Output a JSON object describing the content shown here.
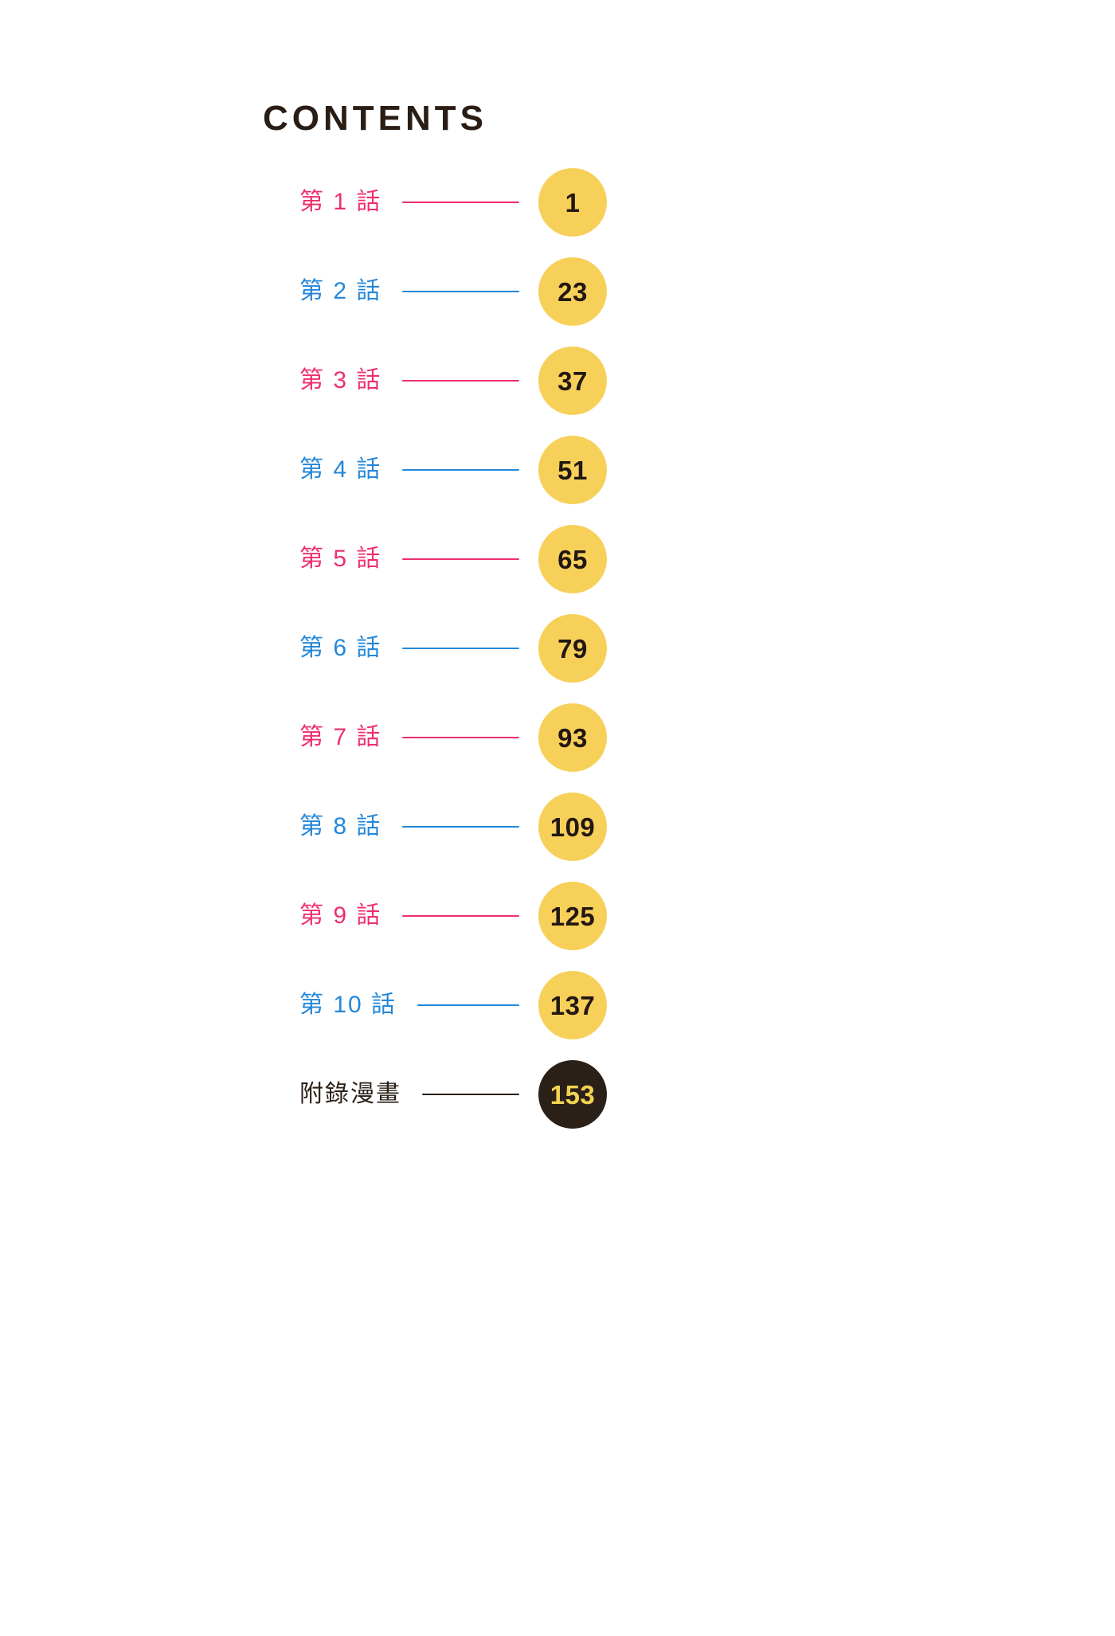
{
  "page": {
    "title": "CONTENTS"
  },
  "colors": {
    "pink": "#ee2f6c",
    "blue": "#2487d8",
    "dark": "#2b2017",
    "title_dark": "#2a1d15",
    "circle_yellow": "#f7d05a",
    "number_dark": "#221712",
    "number_yellow": "#f3d24f"
  },
  "toc": {
    "items": [
      {
        "label": "第 1 話",
        "page": "1",
        "accent": "pink",
        "circle": "yellow"
      },
      {
        "label": "第 2 話",
        "page": "23",
        "accent": "blue",
        "circle": "yellow"
      },
      {
        "label": "第 3 話",
        "page": "37",
        "accent": "pink",
        "circle": "yellow"
      },
      {
        "label": "第 4 話",
        "page": "51",
        "accent": "blue",
        "circle": "yellow"
      },
      {
        "label": "第 5 話",
        "page": "65",
        "accent": "pink",
        "circle": "yellow"
      },
      {
        "label": "第 6 話",
        "page": "79",
        "accent": "blue",
        "circle": "yellow"
      },
      {
        "label": "第 7 話",
        "page": "93",
        "accent": "pink",
        "circle": "yellow"
      },
      {
        "label": "第 8 話",
        "page": "109",
        "accent": "blue",
        "circle": "yellow"
      },
      {
        "label": "第 9 話",
        "page": "125",
        "accent": "pink",
        "circle": "yellow"
      },
      {
        "label": "第 10 話",
        "page": "137",
        "accent": "blue",
        "circle": "yellow"
      },
      {
        "label": "附錄漫畫",
        "page": "153",
        "accent": "dark",
        "circle": "dark"
      }
    ]
  }
}
